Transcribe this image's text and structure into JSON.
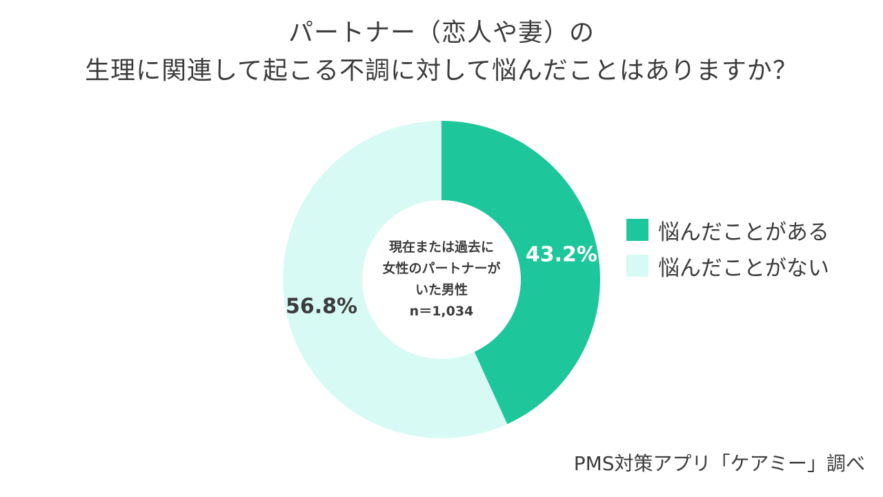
{
  "title": {
    "line1": "パートナー（恋人や妻）の",
    "line2": "生理に関連して起こる不調に対して悩んだことはありますか？"
  },
  "center_label": {
    "line1": "現在または過去に",
    "line2": "女性のパートナーが",
    "line3": "いた男性",
    "line4": "n＝1,034"
  },
  "source": "PMS対策アプリ「ケアミー」調べ",
  "colors": {
    "primary": "#1ec69b",
    "secondary": "#d8faf5",
    "text": "#3c3c3c"
  },
  "chart_data": {
    "type": "pie",
    "variant": "donut",
    "categories": [
      "悩んだことがある",
      "悩んだことがない"
    ],
    "values": [
      43.2,
      56.8
    ],
    "data_labels": [
      "43.2%",
      "56.8%"
    ],
    "legend": "right"
  }
}
